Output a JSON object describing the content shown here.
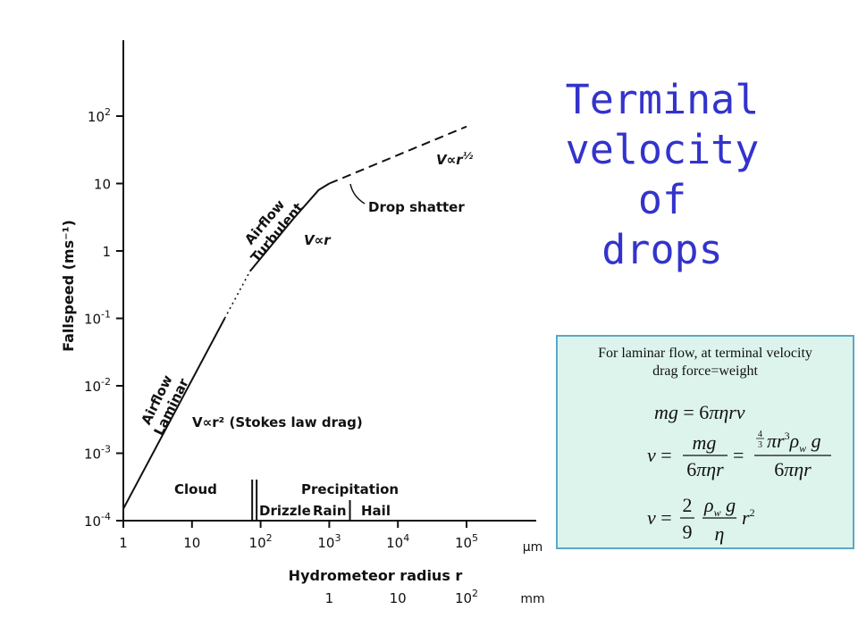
{
  "title_lines": [
    "Terminal",
    "velocity of",
    "drops"
  ],
  "chart_data": {
    "type": "line",
    "ylabel": "Fallspeed (ms⁻¹)",
    "xlabel": "Hydrometeor radius r",
    "x_scale": "log",
    "y_scale": "log",
    "xlim": [
      1,
      100000
    ],
    "ylim": [
      0.0001,
      1000
    ],
    "x_ticks": [
      {
        "value": 1,
        "base": "1",
        "exp": ""
      },
      {
        "value": 10,
        "base": "10",
        "exp": ""
      },
      {
        "value": 100,
        "base": "10",
        "exp": "2"
      },
      {
        "value": 1000,
        "base": "10",
        "exp": "3"
      },
      {
        "value": 10000,
        "base": "10",
        "exp": "4"
      },
      {
        "value": 100000,
        "base": "10",
        "exp": "5"
      }
    ],
    "x_unit": "μm",
    "x_ticks_mm": [
      {
        "value": 1000,
        "base": "1",
        "exp": ""
      },
      {
        "value": 10000,
        "base": "10",
        "exp": ""
      },
      {
        "value": 100000,
        "base": "10",
        "exp": "2"
      }
    ],
    "x_unit_mm": "mm",
    "y_ticks": [
      {
        "value": 0.0001,
        "base": "10",
        "exp": "-4"
      },
      {
        "value": 0.001,
        "base": "10",
        "exp": "-3"
      },
      {
        "value": 0.01,
        "base": "10",
        "exp": "-2"
      },
      {
        "value": 0.1,
        "base": "10",
        "exp": "-1"
      },
      {
        "value": 1,
        "base": "1",
        "exp": ""
      },
      {
        "value": 10,
        "base": "10",
        "exp": ""
      },
      {
        "value": 100,
        "base": "10",
        "exp": "2"
      }
    ],
    "segments": [
      {
        "style": "solid",
        "points": [
          [
            1,
            0.00015
          ],
          [
            30,
            0.1
          ]
        ]
      },
      {
        "style": "dotted",
        "points": [
          [
            30,
            0.1
          ],
          [
            70,
            0.5
          ]
        ]
      },
      {
        "style": "solid",
        "points": [
          [
            70,
            0.5
          ],
          [
            300,
            3
          ],
          [
            700,
            8
          ],
          [
            1000,
            10
          ]
        ]
      },
      {
        "style": "dashed",
        "points": [
          [
            1000,
            10
          ],
          [
            100000,
            70
          ]
        ]
      }
    ],
    "regime_labels": [
      {
        "lines": [
          "Airflow",
          "Laminar"
        ],
        "x": 4,
        "y": 0.003
      },
      {
        "lines": [
          "Airflow",
          "Turbulent"
        ],
        "x": 100,
        "y": 2
      }
    ],
    "annotations": {
      "stokes": "V∝r² (Stokes law drag)",
      "linear": "V∝r",
      "sqrt_v": "V∝r",
      "sqrt_exp": "½",
      "drop_shatter": "Drop shatter"
    },
    "category_labels": {
      "cloud": "Cloud",
      "precipitation": "Precipitation",
      "drizzle": "Drizzle",
      "rain": "Rain",
      "hail": "Hail"
    },
    "category_boundaries": [
      {
        "value": 80,
        "style": "double"
      },
      {
        "value": 2000,
        "style": "single"
      }
    ]
  },
  "formula_box": {
    "caption_line1": "For laminar flow, at terminal velocity",
    "caption_line2": "drag force=weight"
  }
}
